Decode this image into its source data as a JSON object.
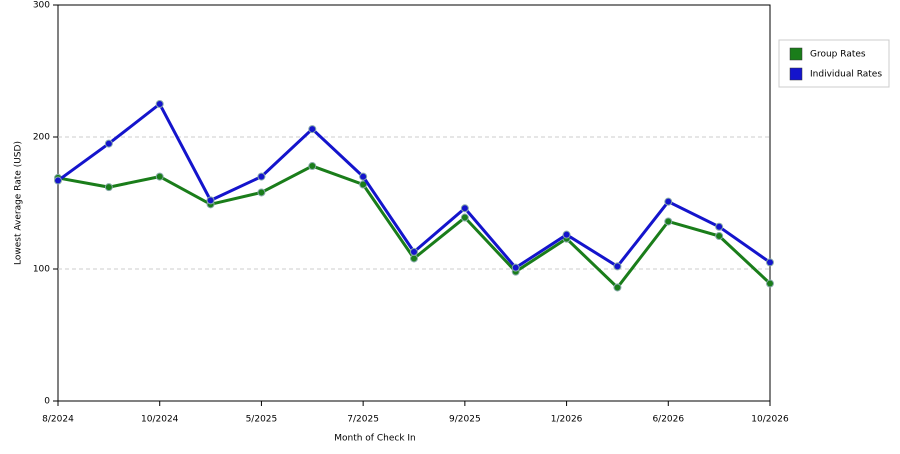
{
  "chart_data": {
    "type": "line",
    "x_label": "Month of Check In",
    "y_label": "Lowest Average Rate (USD)",
    "categories": [
      "8/2024",
      null,
      "10/2024",
      null,
      "5/2025",
      null,
      "7/2025",
      null,
      "9/2025",
      null,
      "1/2026",
      null,
      "6/2026",
      null,
      "10/2026"
    ],
    "series": [
      {
        "name": "Group Rates",
        "color": "#1a7d1a",
        "values": [
          169,
          162,
          170,
          149,
          158,
          178,
          164,
          108,
          139,
          98,
          123,
          86,
          136,
          125,
          89
        ]
      },
      {
        "name": "Individual Rates",
        "color": "#1414cc",
        "values": [
          167,
          195,
          225,
          152,
          170,
          206,
          170,
          113,
          146,
          101,
          126,
          102,
          151,
          132,
          105
        ]
      }
    ],
    "ylim": [
      0,
      300
    ],
    "yticks": [
      0,
      100,
      200,
      300
    ],
    "grid": true,
    "legend": "right"
  }
}
